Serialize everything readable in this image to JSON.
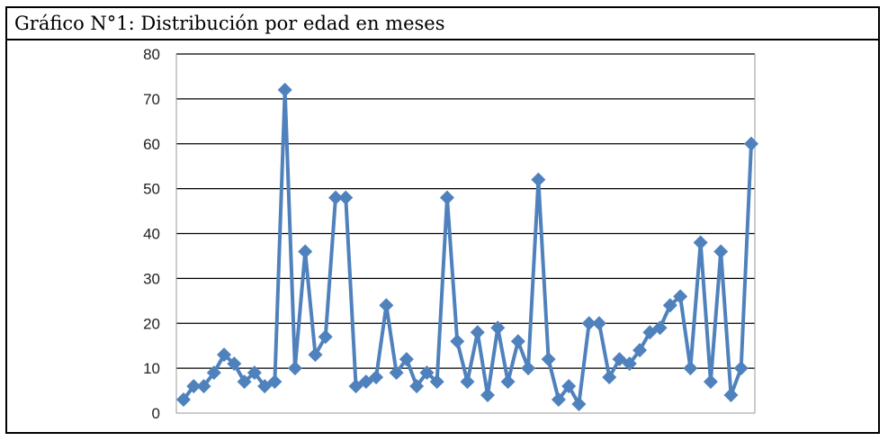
{
  "caption": "Gráfico N°1: Distribución por edad en meses",
  "chart_data": {
    "type": "line",
    "title": "",
    "xlabel": "",
    "ylabel": "",
    "ylim": [
      0,
      80
    ],
    "yticks": [
      0,
      10,
      20,
      30,
      40,
      50,
      60,
      70,
      80
    ],
    "grid": true,
    "legend": "none",
    "series": [
      {
        "values": [
          3,
          6,
          6,
          9,
          13,
          11,
          7,
          9,
          6,
          7,
          72,
          10,
          36,
          13,
          17,
          48,
          48,
          6,
          7,
          8,
          24,
          9,
          12,
          6,
          9,
          7,
          48,
          16,
          7,
          18,
          4,
          19,
          7,
          16,
          10,
          52,
          12,
          3,
          6,
          2,
          20,
          20,
          8,
          12,
          11,
          14,
          18,
          19,
          24,
          26,
          10,
          38,
          7,
          36,
          4,
          10,
          60
        ]
      }
    ],
    "colors": {
      "line": "#4f81bd",
      "marker": "#4f81bd",
      "grid": "#000000"
    }
  }
}
